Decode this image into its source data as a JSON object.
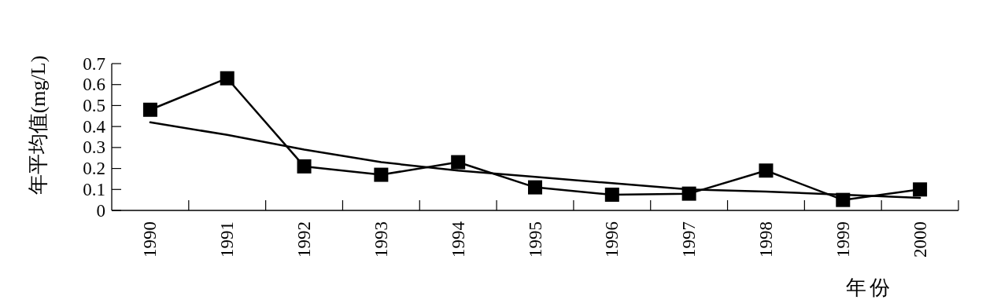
{
  "chart_data": {
    "type": "line",
    "ylabel": "年平均值(mg/L)",
    "xlabel": "年份",
    "categories": [
      "1990",
      "1991",
      "1992",
      "1993",
      "1994",
      "1995",
      "1996",
      "1997",
      "1998",
      "1999",
      "2000"
    ],
    "ylim": [
      0,
      0.7
    ],
    "yticks": [
      0,
      0.1,
      0.2,
      0.3,
      0.4,
      0.5,
      0.6,
      0.7
    ],
    "series": [
      {
        "color": "#000000",
        "marker": "square",
        "values": [
          0.48,
          0.63,
          0.21,
          0.17,
          0.23,
          0.11,
          0.075,
          0.08,
          0.19,
          0.05,
          0.1
        ]
      },
      {
        "color": "#000000",
        "marker": "none",
        "values": [
          0.42,
          0.36,
          0.29,
          0.23,
          0.19,
          0.16,
          0.13,
          0.1,
          0.09,
          0.075,
          0.06
        ]
      }
    ]
  }
}
